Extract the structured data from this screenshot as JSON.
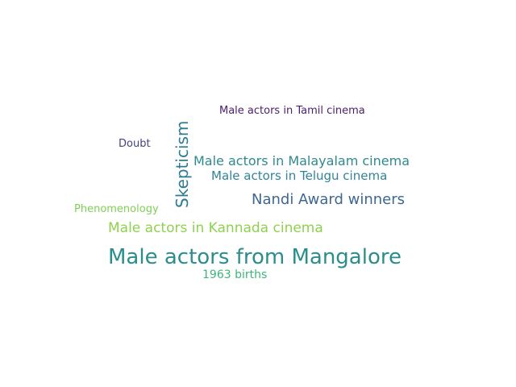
{
  "words": {
    "male_actors_mangalore": "Male actors from Mangalore",
    "male_actors_kannada": "Male actors in Kannada cinema",
    "nandi_award_winners": "Nandi Award winners",
    "skepticism": "Skepticism",
    "male_actors_malayalam": "Male actors in Malayalam cinema",
    "male_actors_telugu": "Male actors in Telugu cinema",
    "male_actors_tamil": "Male actors in Tamil cinema",
    "births_1963": "1963 births",
    "doubt": "Doubt",
    "phenomenology": "Phenomenology"
  },
  "colors": {
    "background": "#ffffff",
    "teal": "#2b8e8c",
    "purple": "#4a1e6e",
    "blue": "#3e6791",
    "green": "#8fd14e"
  }
}
